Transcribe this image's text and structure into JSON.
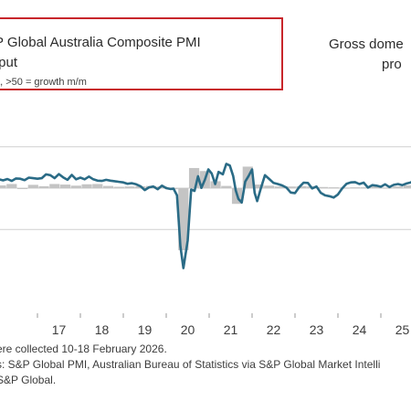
{
  "legend": {
    "title_line1": "P Global Australia Composite PMI",
    "title_line2": "tput",
    "subtitle": "a, >50 = growth m/m"
  },
  "right_legend": {
    "title_line1": "Gross dome",
    "title_line2": "pro"
  },
  "footnotes": {
    "line1": "ere collected 10-18 February 2026.",
    "line2": "s: S&P Global PMI, Australian Bureau of Statistics via S&P Global Market Intelli",
    "line3": "S&P Global."
  },
  "colors": {
    "pmi_line": "#2a6b86",
    "gdp_bars": "#c4c4c4",
    "grid": "#d6d6d6",
    "legend_border": "#c8262b"
  },
  "chart_data": {
    "type": "line",
    "x_ticks": [
      "17",
      "18",
      "19",
      "20",
      "21",
      "22",
      "23",
      "24",
      "25"
    ],
    "x_start_year": 2016,
    "x_end_year": 2026.1,
    "ylim": [
      20,
      70
    ],
    "grid_values": [
      35,
      50,
      65
    ],
    "grid": true,
    "series": [
      {
        "kind": "line",
        "values": [
          [
            2016.0,
            53.8
          ],
          [
            2016.1,
            53.2
          ],
          [
            2016.2,
            52.8
          ],
          [
            2016.3,
            53.3
          ],
          [
            2016.4,
            52.6
          ],
          [
            2016.5,
            53.5
          ],
          [
            2016.6,
            53.4
          ],
          [
            2016.7,
            52.9
          ],
          [
            2016.8,
            53.8
          ],
          [
            2016.9,
            53.6
          ],
          [
            2017.0,
            53.4
          ],
          [
            2017.1,
            53.6
          ],
          [
            2017.2,
            55.0
          ],
          [
            2017.3,
            54.7
          ],
          [
            2017.4,
            53.6
          ],
          [
            2017.5,
            55.1
          ],
          [
            2017.6,
            53.9
          ],
          [
            2017.7,
            53.0
          ],
          [
            2017.8,
            54.8
          ],
          [
            2017.9,
            53.2
          ],
          [
            2018.0,
            53.8
          ],
          [
            2018.1,
            53.2
          ],
          [
            2018.2,
            54.2
          ],
          [
            2018.3,
            53.2
          ],
          [
            2018.4,
            52.7
          ],
          [
            2018.5,
            52.6
          ],
          [
            2018.6,
            53.0
          ],
          [
            2018.7,
            52.7
          ],
          [
            2018.8,
            52.5
          ],
          [
            2018.9,
            52.3
          ],
          [
            2019.0,
            52.1
          ],
          [
            2019.1,
            51.6
          ],
          [
            2019.2,
            51.8
          ],
          [
            2019.3,
            51.4
          ],
          [
            2019.4,
            50.7
          ],
          [
            2019.5,
            49.3
          ],
          [
            2019.6,
            50.3
          ],
          [
            2019.7,
            50.6
          ],
          [
            2019.8,
            49.6
          ],
          [
            2019.9,
            50.9
          ],
          [
            2020.0,
            50.0
          ],
          [
            2020.1,
            49.7
          ],
          [
            2020.17,
            49.8
          ],
          [
            2020.25,
            47.4
          ],
          [
            2020.33,
            29.0
          ],
          [
            2020.4,
            21.0
          ],
          [
            2020.5,
            31.0
          ],
          [
            2020.58,
            49.5
          ],
          [
            2020.66,
            49.0
          ],
          [
            2020.74,
            54.3
          ],
          [
            2020.82,
            50.1
          ],
          [
            2020.9,
            53.0
          ],
          [
            2020.98,
            56.8
          ],
          [
            2021.06,
            55.3
          ],
          [
            2021.14,
            51.5
          ],
          [
            2021.22,
            55.9
          ],
          [
            2021.32,
            55.0
          ],
          [
            2021.4,
            58.8
          ],
          [
            2021.48,
            58.2
          ],
          [
            2021.56,
            54.4
          ],
          [
            2021.62,
            49.2
          ],
          [
            2021.68,
            46.1
          ],
          [
            2021.76,
            44.8
          ],
          [
            2021.84,
            52.4
          ],
          [
            2021.92,
            54.4
          ],
          [
            2022.0,
            56.8
          ],
          [
            2022.06,
            48.3
          ],
          [
            2022.12,
            45.3
          ],
          [
            2022.2,
            49.7
          ],
          [
            2022.3,
            54.7
          ],
          [
            2022.4,
            53.3
          ],
          [
            2022.5,
            51.9
          ],
          [
            2022.6,
            51.5
          ],
          [
            2022.7,
            51.0
          ],
          [
            2022.8,
            50.2
          ],
          [
            2022.9,
            48.4
          ],
          [
            2023.0,
            48.2
          ],
          [
            2023.1,
            50.4
          ],
          [
            2023.2,
            52.0
          ],
          [
            2023.3,
            51.9
          ],
          [
            2023.4,
            49.9
          ],
          [
            2023.5,
            50.6
          ],
          [
            2023.6,
            48.3
          ],
          [
            2023.7,
            47.4
          ],
          [
            2023.8,
            47.1
          ],
          [
            2023.9,
            46.6
          ],
          [
            2024.0,
            47.7
          ],
          [
            2024.1,
            49.9
          ],
          [
            2024.2,
            51.6
          ],
          [
            2024.3,
            52.1
          ],
          [
            2024.4,
            52.2
          ],
          [
            2024.5,
            51.5
          ],
          [
            2024.6,
            52.0
          ],
          [
            2024.7,
            50.2
          ],
          [
            2024.8,
            51.1
          ],
          [
            2024.9,
            50.9
          ],
          [
            2025.0,
            50.5
          ],
          [
            2025.1,
            51.4
          ],
          [
            2025.2,
            50.4
          ],
          [
            2025.3,
            51.2
          ],
          [
            2025.4,
            51.5
          ],
          [
            2025.5,
            51.1
          ],
          [
            2025.6,
            51.7
          ],
          [
            2025.7,
            52.1
          ],
          [
            2025.8,
            53.2
          ],
          [
            2025.9,
            51.2
          ],
          [
            2026.0,
            54.3
          ],
          [
            2026.1,
            55.4
          ]
        ]
      },
      {
        "kind": "bar",
        "values": [
          [
            2016.15,
            51.0
          ],
          [
            2016.4,
            51.5
          ],
          [
            2016.65,
            49.8
          ],
          [
            2016.9,
            51.2
          ],
          [
            2017.15,
            50.7
          ],
          [
            2017.4,
            51.5
          ],
          [
            2017.65,
            51.3
          ],
          [
            2017.9,
            50.9
          ],
          [
            2018.15,
            51.4
          ],
          [
            2018.4,
            51.5
          ],
          [
            2018.65,
            50.8
          ],
          [
            2018.9,
            50.5
          ],
          [
            2019.15,
            50.6
          ],
          [
            2019.4,
            50.7
          ],
          [
            2019.65,
            50.8
          ],
          [
            2019.9,
            50.6
          ],
          [
            2020.15,
            49.6
          ],
          [
            2020.4,
            27.5
          ],
          [
            2020.65,
            57.3
          ],
          [
            2020.9,
            56.2
          ],
          [
            2021.15,
            52.5
          ],
          [
            2021.4,
            50.8
          ],
          [
            2021.65,
            44.3
          ],
          [
            2021.9,
            57.8
          ],
          [
            2022.15,
            51.3
          ],
          [
            2022.4,
            50.9
          ],
          [
            2022.65,
            50.6
          ],
          [
            2022.9,
            50.6
          ],
          [
            2023.15,
            50.7
          ],
          [
            2023.4,
            50.6
          ],
          [
            2023.65,
            50.4
          ],
          [
            2023.9,
            50.3
          ],
          [
            2024.15,
            50.2
          ],
          [
            2024.4,
            50.3
          ],
          [
            2024.65,
            50.3
          ],
          [
            2024.9,
            50.6
          ],
          [
            2025.15,
            50.2
          ],
          [
            2025.4,
            50.6
          ],
          [
            2025.65,
            51.0
          ],
          [
            2025.9,
            50.7
          ]
        ]
      }
    ]
  }
}
